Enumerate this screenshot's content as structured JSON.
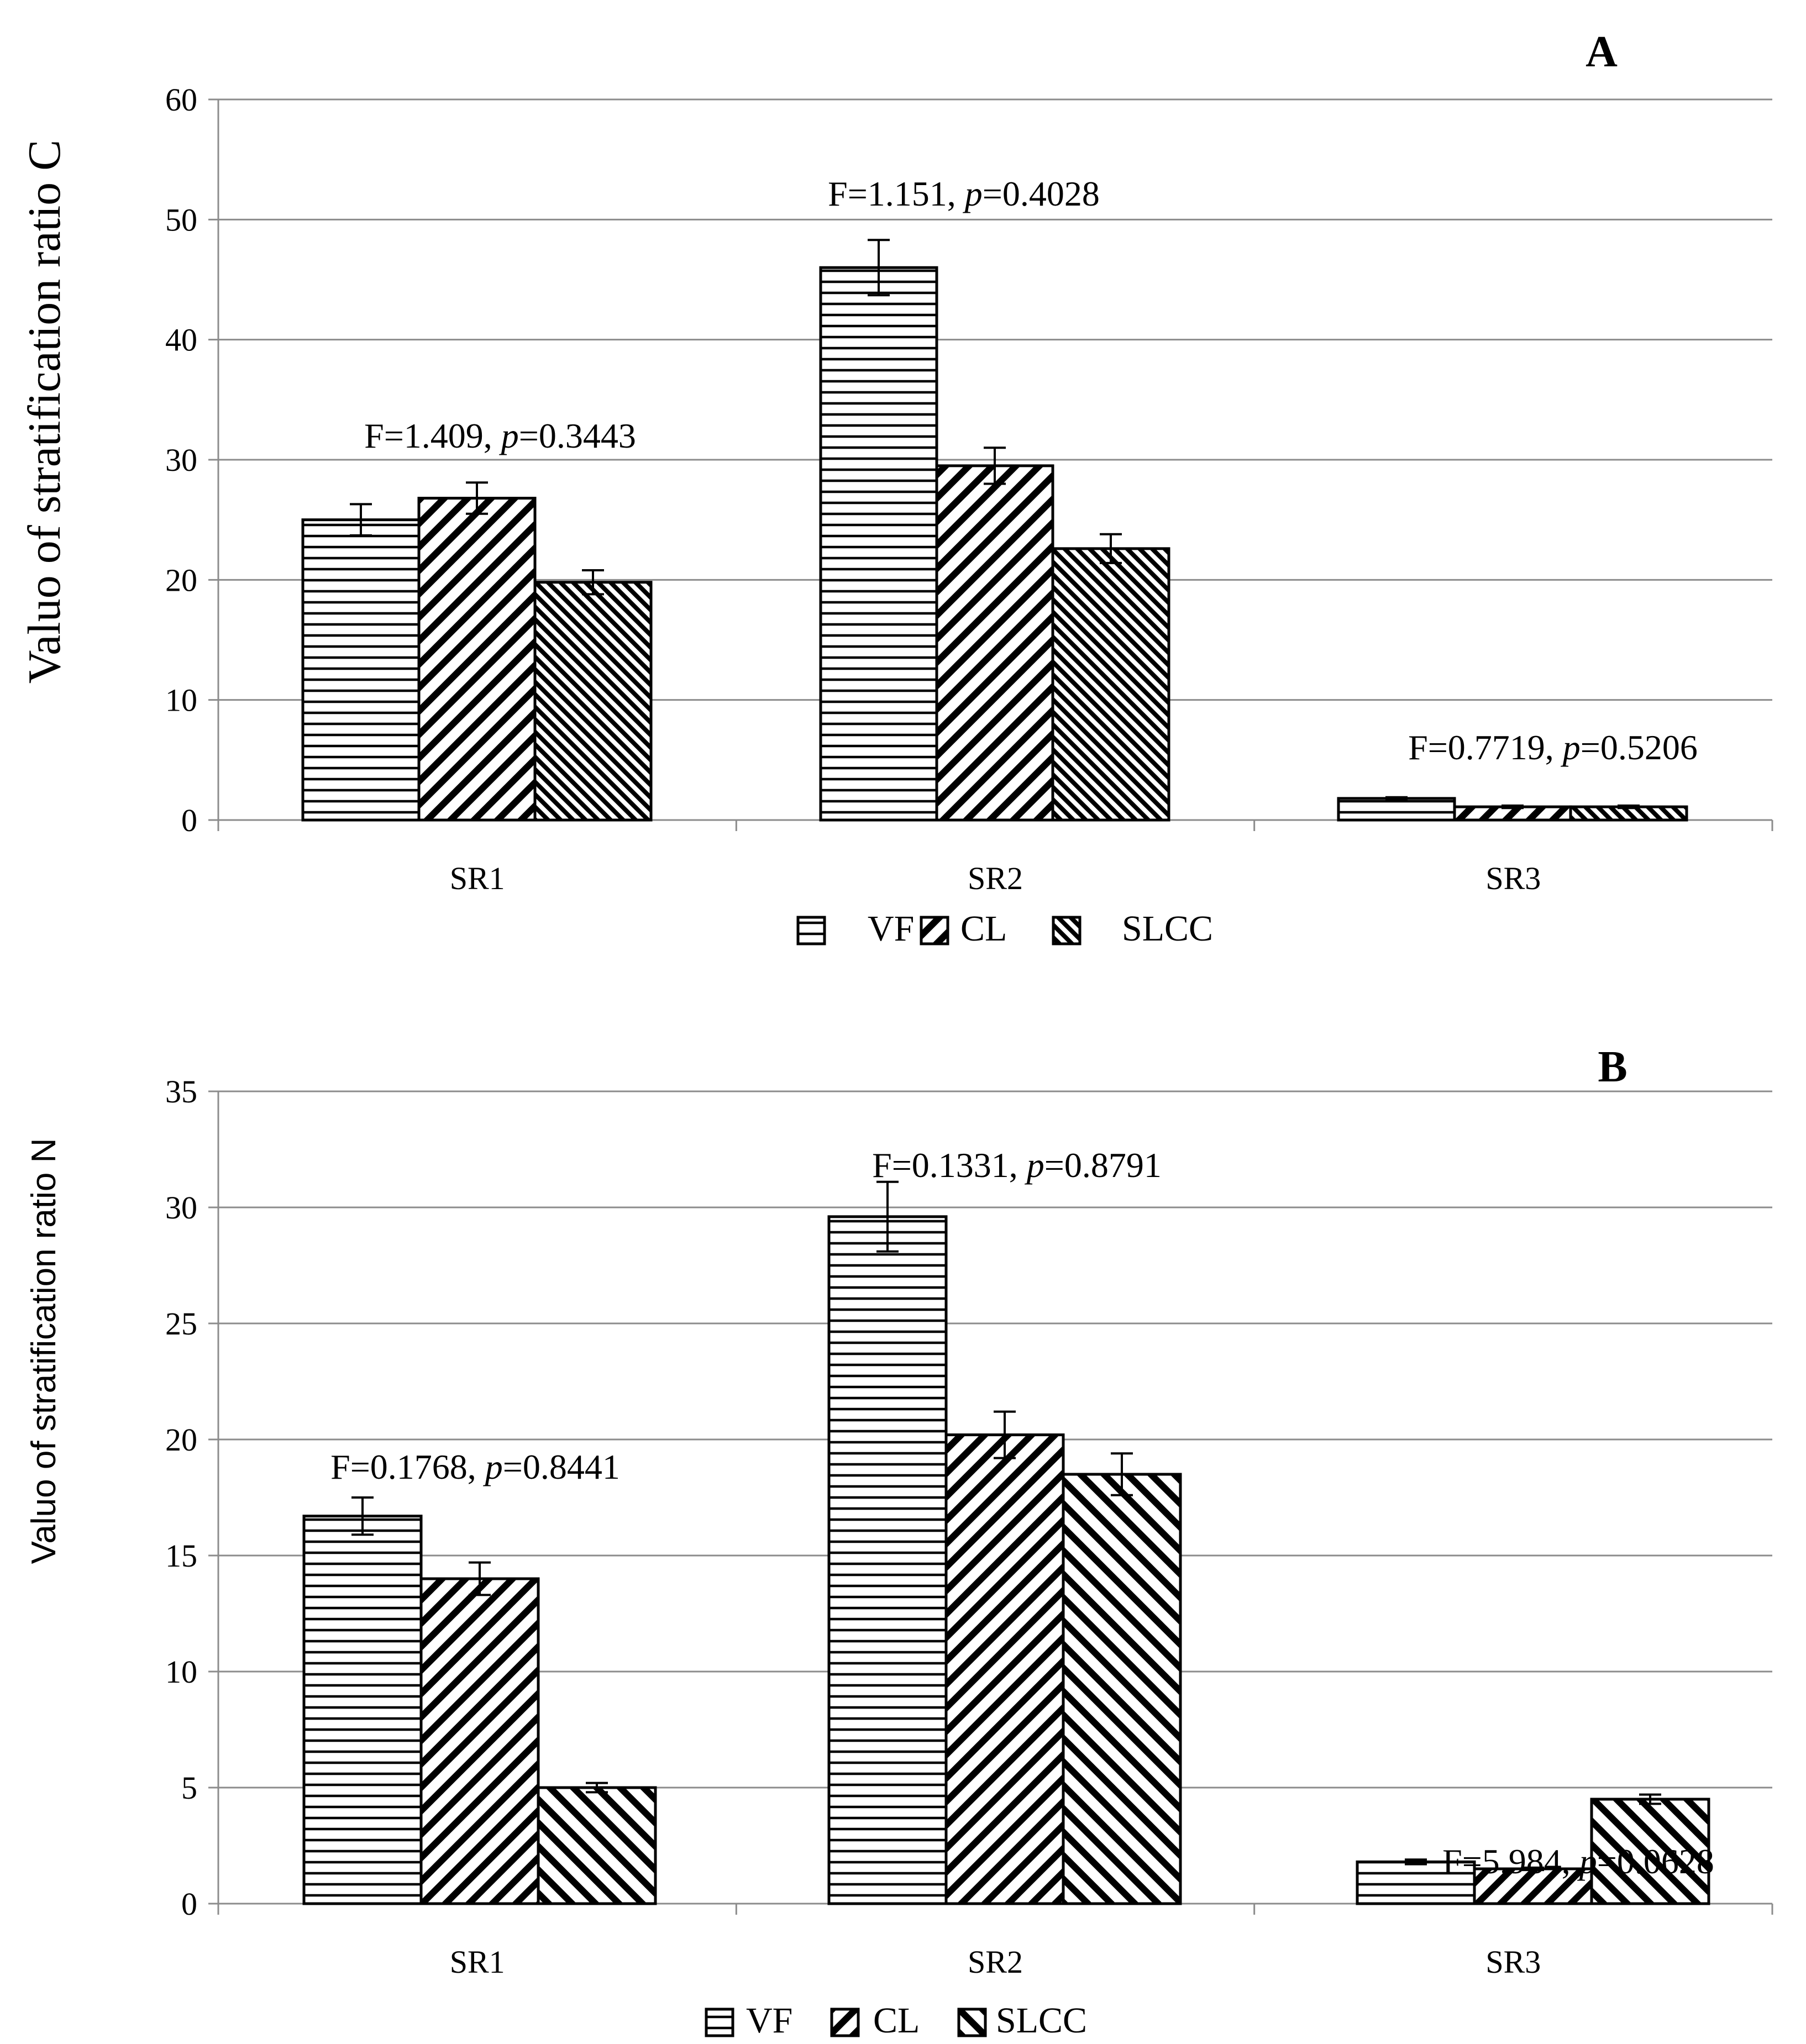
{
  "chart_data": [
    {
      "type": "bar",
      "panel_label": "A",
      "ylabel": "Valuo of  stratification ratio C",
      "ylim": [
        0,
        60
      ],
      "yticks": [
        0,
        10,
        20,
        30,
        40,
        50,
        60
      ],
      "categories": [
        "SR1",
        "SR2",
        "SR3"
      ],
      "series": [
        {
          "name": "VF",
          "pattern": "horizontal",
          "values": [
            25.0,
            46.0,
            1.8
          ],
          "errors": [
            1.3,
            2.3,
            0.1
          ]
        },
        {
          "name": "CL",
          "pattern": "diag-down",
          "values": [
            26.8,
            29.5,
            1.1
          ],
          "errors": [
            1.3,
            1.5,
            0.1
          ]
        },
        {
          "name": "SLCC",
          "pattern": "diag-up-dense",
          "values": [
            19.8,
            22.6,
            1.1
          ],
          "errors": [
            1.0,
            1.2,
            0.1
          ]
        }
      ],
      "annotations": [
        {
          "category": "SR1",
          "f_text": "F=1.409, ",
          "p_label": "p",
          "p_text": "=0.3443"
        },
        {
          "category": "SR2",
          "f_text": "F=1.151, ",
          "p_label": "p",
          "p_text": "=0.4028"
        },
        {
          "category": "SR3",
          "f_text": "F=0.7719, ",
          "p_label": "p",
          "p_text": "=0.5206"
        }
      ],
      "grid": true,
      "legend": "bottom"
    },
    {
      "type": "bar",
      "panel_label": "B",
      "ylabel": "Valuo of  stratification ratio N",
      "ylim": [
        0,
        35
      ],
      "yticks": [
        0,
        5,
        10,
        15,
        20,
        25,
        30,
        35
      ],
      "categories": [
        "SR1",
        "SR2",
        "SR3"
      ],
      "series": [
        {
          "name": "VF",
          "pattern": "horizontal",
          "values": [
            16.7,
            29.6,
            1.8
          ],
          "errors": [
            0.8,
            1.5,
            0.1
          ]
        },
        {
          "name": "CL",
          "pattern": "diag-down",
          "values": [
            14.0,
            20.2,
            1.5
          ],
          "errors": [
            0.7,
            1.0,
            0.05
          ]
        },
        {
          "name": "SLCC",
          "pattern": "diag-up",
          "values": [
            5.0,
            18.5,
            4.5
          ],
          "errors": [
            0.2,
            0.9,
            0.2
          ]
        }
      ],
      "annotations": [
        {
          "category": "SR1",
          "f_text": "F=0.1768, ",
          "p_label": "p",
          "p_text": "=0.8441"
        },
        {
          "category": "SR2",
          "f_text": "F=0.1331, ",
          "p_label": "p",
          "p_text": "=0.8791"
        },
        {
          "category": "SR3",
          "f_text": "F=5.984, ",
          "p_label": "p",
          "p_text": "=0.0628"
        }
      ],
      "grid": true,
      "legend": "bottom"
    }
  ]
}
